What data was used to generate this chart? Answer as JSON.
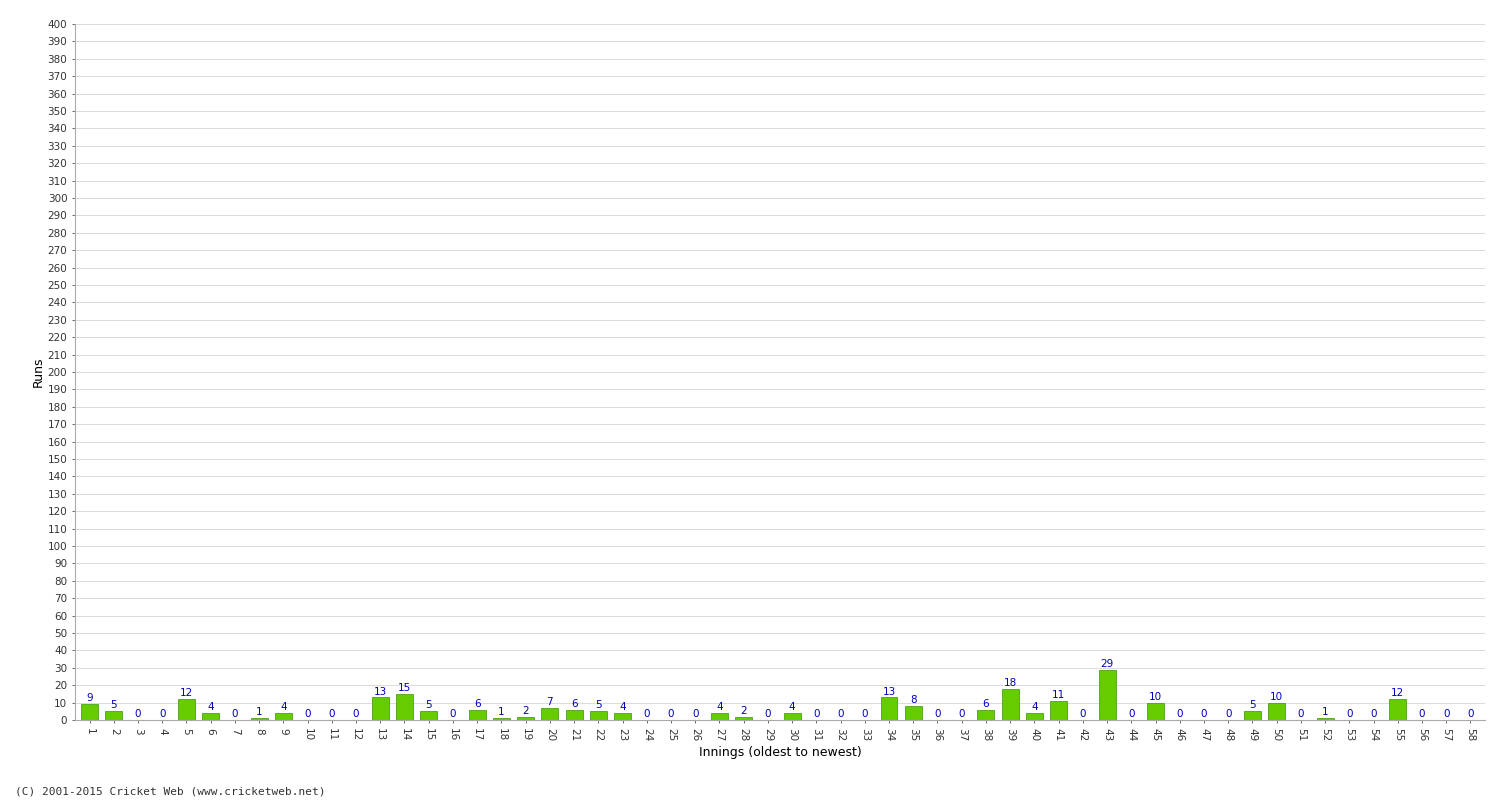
{
  "xlabel": "Innings (oldest to newest)",
  "ylabel": "Runs",
  "bar_color": "#66cc00",
  "bar_edge_color": "#339900",
  "label_color": "#0000bb",
  "background_color": "#ffffff",
  "grid_color": "#cccccc",
  "ylim": [
    0,
    400
  ],
  "ytick_step": 10,
  "values": [
    9,
    5,
    0,
    0,
    12,
    4,
    0,
    1,
    4,
    0,
    0,
    0,
    13,
    15,
    5,
    0,
    6,
    1,
    2,
    7,
    6,
    5,
    4,
    0,
    0,
    0,
    4,
    2,
    0,
    4,
    0,
    0,
    0,
    13,
    8,
    0,
    0,
    6,
    18,
    4,
    11,
    0,
    29,
    0,
    10,
    0,
    0,
    0,
    5,
    10,
    0,
    1,
    0,
    0,
    12,
    0,
    0,
    0
  ],
  "innings": [
    1,
    2,
    3,
    4,
    5,
    6,
    7,
    8,
    9,
    10,
    11,
    12,
    13,
    14,
    15,
    16,
    17,
    18,
    19,
    20,
    21,
    22,
    23,
    24,
    25,
    26,
    27,
    28,
    29,
    30,
    31,
    32,
    33,
    34,
    35,
    36,
    37,
    38,
    39,
    40,
    41,
    42,
    43,
    44,
    45,
    46,
    47,
    48,
    49,
    50,
    51,
    52,
    53,
    54,
    55,
    56,
    57,
    58
  ],
  "footer": "(C) 2001-2015 Cricket Web (www.cricketweb.net)",
  "label_fontsize": 7.5,
  "tick_fontsize": 7.5,
  "axis_label_fontsize": 9,
  "footer_fontsize": 8
}
